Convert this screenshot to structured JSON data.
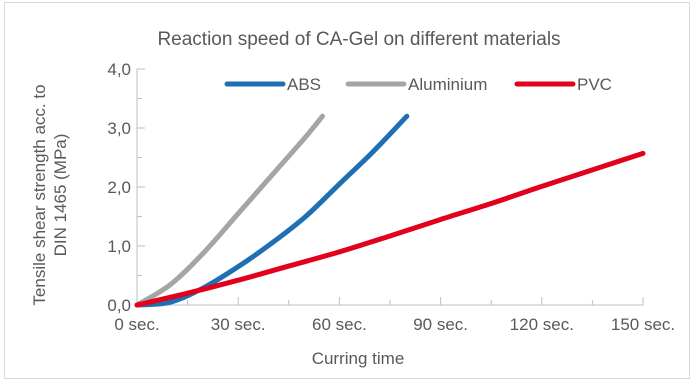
{
  "chart_data": {
    "type": "line",
    "title": "Reaction speed of CA-Gel on different materials",
    "xlabel": "Curring time",
    "ylabel_lines": [
      "Tensile shear strength acc. to",
      "DIN 1465 (MPa)"
    ],
    "xlim": [
      0,
      150
    ],
    "ylim": [
      0,
      4
    ],
    "x_ticks": [
      0,
      30,
      60,
      90,
      120,
      150
    ],
    "x_tick_labels": [
      "0 sec.",
      "30 sec.",
      "60 sec.",
      "90 sec.",
      "120 sec.",
      "150 sec."
    ],
    "y_ticks": [
      0,
      1,
      2,
      3,
      4
    ],
    "y_tick_labels": [
      "0,0",
      "1,0",
      "2,0",
      "3,0",
      "4,0"
    ],
    "grid": false,
    "legend_position": "top",
    "series": [
      {
        "name": "ABS",
        "color": "#1f6fb5",
        "x": [
          0,
          10,
          20,
          30,
          40,
          50,
          60,
          70,
          80
        ],
        "y": [
          0,
          0.05,
          0.3,
          0.65,
          1.05,
          1.5,
          2.05,
          2.6,
          3.2
        ]
      },
      {
        "name": "Aluminium",
        "color": "#a5a5a5",
        "x": [
          0,
          10,
          20,
          30,
          40,
          50,
          55
        ],
        "y": [
          0,
          0.35,
          0.9,
          1.55,
          2.2,
          2.85,
          3.2
        ]
      },
      {
        "name": "PVC",
        "color": "#e2001a",
        "x": [
          0,
          15,
          30,
          45,
          60,
          75,
          90,
          105,
          120,
          135,
          150
        ],
        "y": [
          0,
          0.2,
          0.42,
          0.66,
          0.9,
          1.17,
          1.45,
          1.72,
          2.01,
          2.29,
          2.57
        ]
      }
    ]
  }
}
